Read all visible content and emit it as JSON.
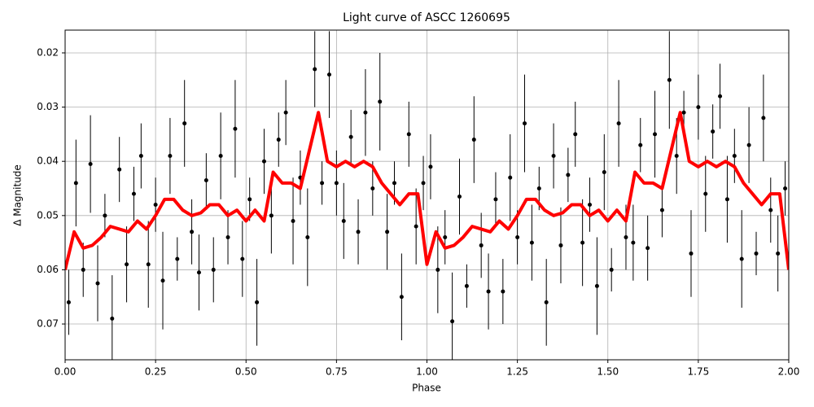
{
  "chart_data": {
    "type": "scatter",
    "title": "Light curve of ASCC 1260695",
    "xlabel": "Phase",
    "ylabel": "Δ Magnitude",
    "xlim": [
      0,
      2
    ],
    "ylim": [
      0.0766,
      0.0158
    ],
    "grid": true,
    "xticks": [
      {
        "value": 0,
        "label": "0.00"
      },
      {
        "value": 0.25,
        "label": "0.25"
      },
      {
        "value": 0.5,
        "label": "0.50"
      },
      {
        "value": 0.75,
        "label": "0.75"
      },
      {
        "value": 1,
        "label": "1.00"
      },
      {
        "value": 1.25,
        "label": "1.25"
      },
      {
        "value": 1.5,
        "label": "1.50"
      },
      {
        "value": 1.75,
        "label": "1.75"
      },
      {
        "value": 2,
        "label": "2.00"
      }
    ],
    "yticks": [
      0.02,
      0.03,
      0.04,
      0.05,
      0.06,
      0.07
    ],
    "color": "#000000",
    "x": [
      0.01,
      0.03,
      0.05,
      0.07,
      0.09,
      0.11,
      0.13,
      0.15,
      0.17,
      0.19,
      0.21,
      0.23,
      0.25,
      0.27,
      0.29,
      0.31,
      0.33,
      0.35,
      0.37,
      0.39,
      0.41,
      0.43,
      0.45,
      0.47,
      0.49,
      0.51,
      0.53,
      0.55,
      0.57,
      0.59,
      0.61,
      0.63,
      0.65,
      0.67,
      0.69,
      0.71,
      0.73,
      0.75,
      0.77,
      0.79,
      0.81,
      0.83,
      0.85,
      0.87,
      0.89,
      0.91,
      0.93,
      0.95,
      0.97,
      0.99,
      1.01,
      1.03,
      1.05,
      1.07,
      1.09,
      1.11,
      1.13,
      1.15,
      1.17,
      1.19,
      1.21,
      1.23,
      1.25,
      1.27,
      1.29,
      1.31,
      1.33,
      1.35,
      1.37,
      1.39,
      1.41,
      1.43,
      1.45,
      1.47,
      1.49,
      1.51,
      1.53,
      1.55,
      1.57,
      1.59,
      1.61,
      1.63,
      1.65,
      1.67,
      1.69,
      1.71,
      1.73,
      1.75,
      1.77,
      1.79,
      1.81,
      1.83,
      1.85,
      1.87,
      1.89,
      1.91,
      1.93,
      1.95,
      1.97,
      1.99
    ],
    "values": [
      0.066,
      0.044,
      0.06,
      0.0405,
      0.0625,
      0.05,
      0.069,
      0.0415,
      0.059,
      0.046,
      0.039,
      0.059,
      0.048,
      0.062,
      0.039,
      0.058,
      0.033,
      0.053,
      0.0605,
      0.0435,
      0.06,
      0.039,
      0.054,
      0.034,
      0.058,
      0.047,
      0.066,
      0.04,
      0.05,
      0.036,
      0.031,
      0.051,
      0.043,
      0.054,
      0.023,
      0.044,
      0.024,
      0.044,
      0.051,
      0.0355,
      0.053,
      0.031,
      0.045,
      0.029,
      0.053,
      0.044,
      0.065,
      0.035,
      0.052,
      0.044,
      0.041,
      0.06,
      0.054,
      0.0695,
      0.0465,
      0.063,
      0.036,
      0.0555,
      0.064,
      0.047,
      0.064,
      0.043,
      0.054,
      0.033,
      0.055,
      0.045,
      0.066,
      0.039,
      0.0555,
      0.0425,
      0.035,
      0.055,
      0.048,
      0.063,
      0.042,
      0.06,
      0.033,
      0.054,
      0.055,
      0.037,
      0.056,
      0.035,
      0.049,
      0.025,
      0.039,
      0.031,
      0.057,
      0.03,
      0.046,
      0.0345,
      0.028,
      0.047,
      0.039,
      0.058,
      0.037,
      0.057,
      0.032,
      0.049,
      0.057,
      0.045
    ],
    "errors": [
      0.006,
      0.008,
      0.005,
      0.009,
      0.007,
      0.004,
      0.008,
      0.006,
      0.007,
      0.005,
      0.006,
      0.008,
      0.005,
      0.009,
      0.007,
      0.004,
      0.008,
      0.006,
      0.007,
      0.005,
      0.006,
      0.008,
      0.005,
      0.009,
      0.007,
      0.004,
      0.008,
      0.006,
      0.007,
      0.005,
      0.006,
      0.008,
      0.005,
      0.009,
      0.007,
      0.004,
      0.008,
      0.006,
      0.007,
      0.005,
      0.006,
      0.008,
      0.005,
      0.009,
      0.007,
      0.004,
      0.008,
      0.006,
      0.007,
      0.005,
      0.006,
      0.008,
      0.005,
      0.009,
      0.007,
      0.004,
      0.008,
      0.006,
      0.007,
      0.005,
      0.006,
      0.008,
      0.005,
      0.009,
      0.007,
      0.004,
      0.008,
      0.006,
      0.007,
      0.005,
      0.006,
      0.008,
      0.005,
      0.009,
      0.007,
      0.004,
      0.008,
      0.006,
      0.007,
      0.005,
      0.006,
      0.008,
      0.005,
      0.009,
      0.007,
      0.004,
      0.008,
      0.006,
      0.007,
      0.005,
      0.006,
      0.008,
      0.005,
      0.009,
      0.007,
      0.004,
      0.008,
      0.006,
      0.007,
      0.005
    ],
    "fit": {
      "color": "#ff0000",
      "x": [
        0,
        0.025,
        0.05,
        0.075,
        0.1,
        0.125,
        0.15,
        0.175,
        0.2,
        0.225,
        0.25,
        0.275,
        0.3,
        0.325,
        0.35,
        0.375,
        0.4,
        0.425,
        0.45,
        0.475,
        0.5,
        0.525,
        0.55,
        0.575,
        0.6,
        0.625,
        0.65,
        0.675,
        0.7,
        0.725,
        0.75,
        0.775,
        0.8,
        0.825,
        0.85,
        0.875,
        0.9,
        0.925,
        0.95,
        0.975,
        1,
        1.025,
        1.05,
        1.075,
        1.1,
        1.125,
        1.15,
        1.175,
        1.2,
        1.225,
        1.25,
        1.275,
        1.3,
        1.325,
        1.35,
        1.375,
        1.4,
        1.425,
        1.45,
        1.475,
        1.5,
        1.525,
        1.55,
        1.575,
        1.6,
        1.625,
        1.65,
        1.675,
        1.7,
        1.725,
        1.75,
        1.775,
        1.8,
        1.825,
        1.85,
        1.875,
        1.9,
        1.925,
        1.95,
        1.975,
        2
      ],
      "values": [
        0.06,
        0.053,
        0.056,
        0.0555,
        0.054,
        0.052,
        0.0525,
        0.053,
        0.051,
        0.0525,
        0.05,
        0.047,
        0.047,
        0.049,
        0.05,
        0.0495,
        0.048,
        0.048,
        0.05,
        0.049,
        0.051,
        0.049,
        0.051,
        0.042,
        0.044,
        0.044,
        0.045,
        0.038,
        0.031,
        0.04,
        0.041,
        0.04,
        0.041,
        0.04,
        0.041,
        0.044,
        0.046,
        0.048,
        0.046,
        0.046,
        0.059,
        0.053,
        0.056,
        0.0555,
        0.054,
        0.052,
        0.0525,
        0.053,
        0.051,
        0.0525,
        0.05,
        0.047,
        0.047,
        0.049,
        0.05,
        0.0495,
        0.048,
        0.048,
        0.05,
        0.049,
        0.051,
        0.049,
        0.051,
        0.042,
        0.044,
        0.044,
        0.045,
        0.038,
        0.031,
        0.04,
        0.041,
        0.04,
        0.041,
        0.04,
        0.041,
        0.044,
        0.046,
        0.048,
        0.046,
        0.046,
        0.06
      ]
    }
  }
}
